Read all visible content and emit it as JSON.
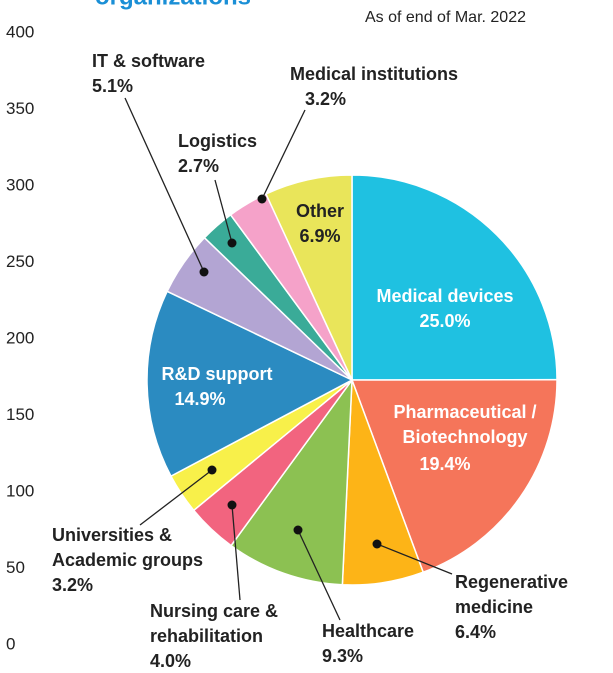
{
  "chart_data": {
    "type": "pie",
    "title": "organizations",
    "subtitle": "As of end of Mar. 2022",
    "ylim": [
      0,
      400
    ],
    "yticks": [
      0,
      50,
      100,
      150,
      200,
      250,
      300,
      350,
      400
    ],
    "categories": [
      [
        "Medical devices"
      ],
      [
        "Pharmaceutical /",
        "Biotechnology"
      ],
      [
        "Regenerative",
        "medicine"
      ],
      [
        "Healthcare"
      ],
      [
        "Nursing care &",
        "rehabilitation"
      ],
      [
        "Universities &",
        "Academic groups"
      ],
      [
        "R&D support"
      ],
      [
        "IT & software"
      ],
      [
        "Logistics"
      ],
      [
        "Medical institutions"
      ],
      [
        "Other"
      ]
    ],
    "values": [
      25.0,
      19.4,
      6.4,
      9.3,
      4.0,
      3.2,
      14.9,
      5.1,
      2.7,
      3.2,
      6.9
    ],
    "value_labels": [
      "25.0%",
      "19.4%",
      "6.4%",
      "9.3%",
      "4.0%",
      "3.2%",
      "14.9%",
      "5.1%",
      "2.7%",
      "3.2%",
      "6.9%"
    ],
    "colors": [
      "#1fc1e1",
      "#f5755a",
      "#fdb417",
      "#8cc152",
      "#f2647f",
      "#f8f04a",
      "#2b8bc1",
      "#b3a5d3",
      "#3aab98",
      "#f5a2c9",
      "#e9e55a"
    ]
  }
}
